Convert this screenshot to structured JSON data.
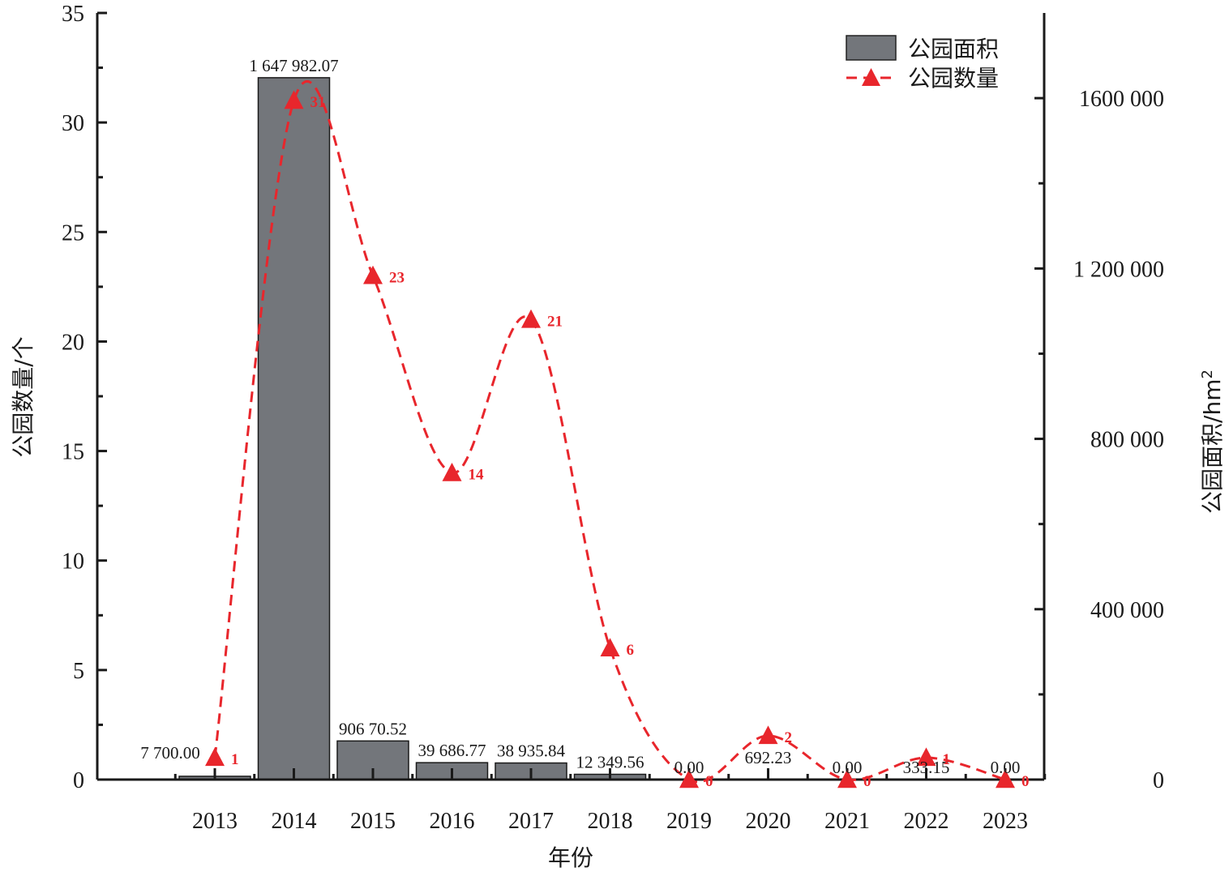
{
  "chart_data": {
    "type": "bar",
    "categories": [
      "2013",
      "2014",
      "2015",
      "2016",
      "2017",
      "2018",
      "2019",
      "2020",
      "2021",
      "2022",
      "2023"
    ],
    "xlabel": "年份",
    "ylabel_left": "公园数量/个",
    "ylabel_right_base": "公园面积/hm",
    "ylabel_right_sup": "2",
    "left_axis": {
      "min": 0,
      "max": 35,
      "ticks": [
        0,
        5,
        10,
        15,
        20,
        25,
        30,
        35
      ],
      "tick_labels": [
        "0",
        "5",
        "10",
        "15",
        "20",
        "25",
        "30",
        "35"
      ]
    },
    "right_axis": {
      "min": 0,
      "max": 1800000,
      "ticks": [
        0,
        400000,
        800000,
        1200000,
        1600000
      ],
      "tick_labels": [
        "0",
        "400 000",
        "800 000",
        "1 200 000",
        "1600 000"
      ]
    },
    "series": [
      {
        "name": "公园面积",
        "type": "bar",
        "axis": "right",
        "color": "#73767b",
        "values": [
          7700.0,
          1647982.07,
          90670.52,
          39686.77,
          38935.84,
          12349.56,
          0.0,
          692.23,
          0.0,
          333.15,
          0.0
        ],
        "labels": [
          "7 700.00",
          "1 647 982.07",
          "906 70.52",
          "39 686.77",
          "38 935.84",
          "12 349.56",
          "0.00",
          "692.23",
          "0.00",
          "333.15",
          "0.00"
        ]
      },
      {
        "name": "公园数量",
        "type": "line",
        "axis": "left",
        "color": "#e8262c",
        "values": [
          1,
          31,
          23,
          14,
          21,
          6,
          0,
          2,
          0,
          1,
          0
        ],
        "labels": [
          "1",
          "31",
          "23",
          "14",
          "21",
          "6",
          "0",
          "2",
          "0",
          "1",
          "0"
        ]
      }
    ],
    "legend": {
      "position": "top-right"
    }
  }
}
